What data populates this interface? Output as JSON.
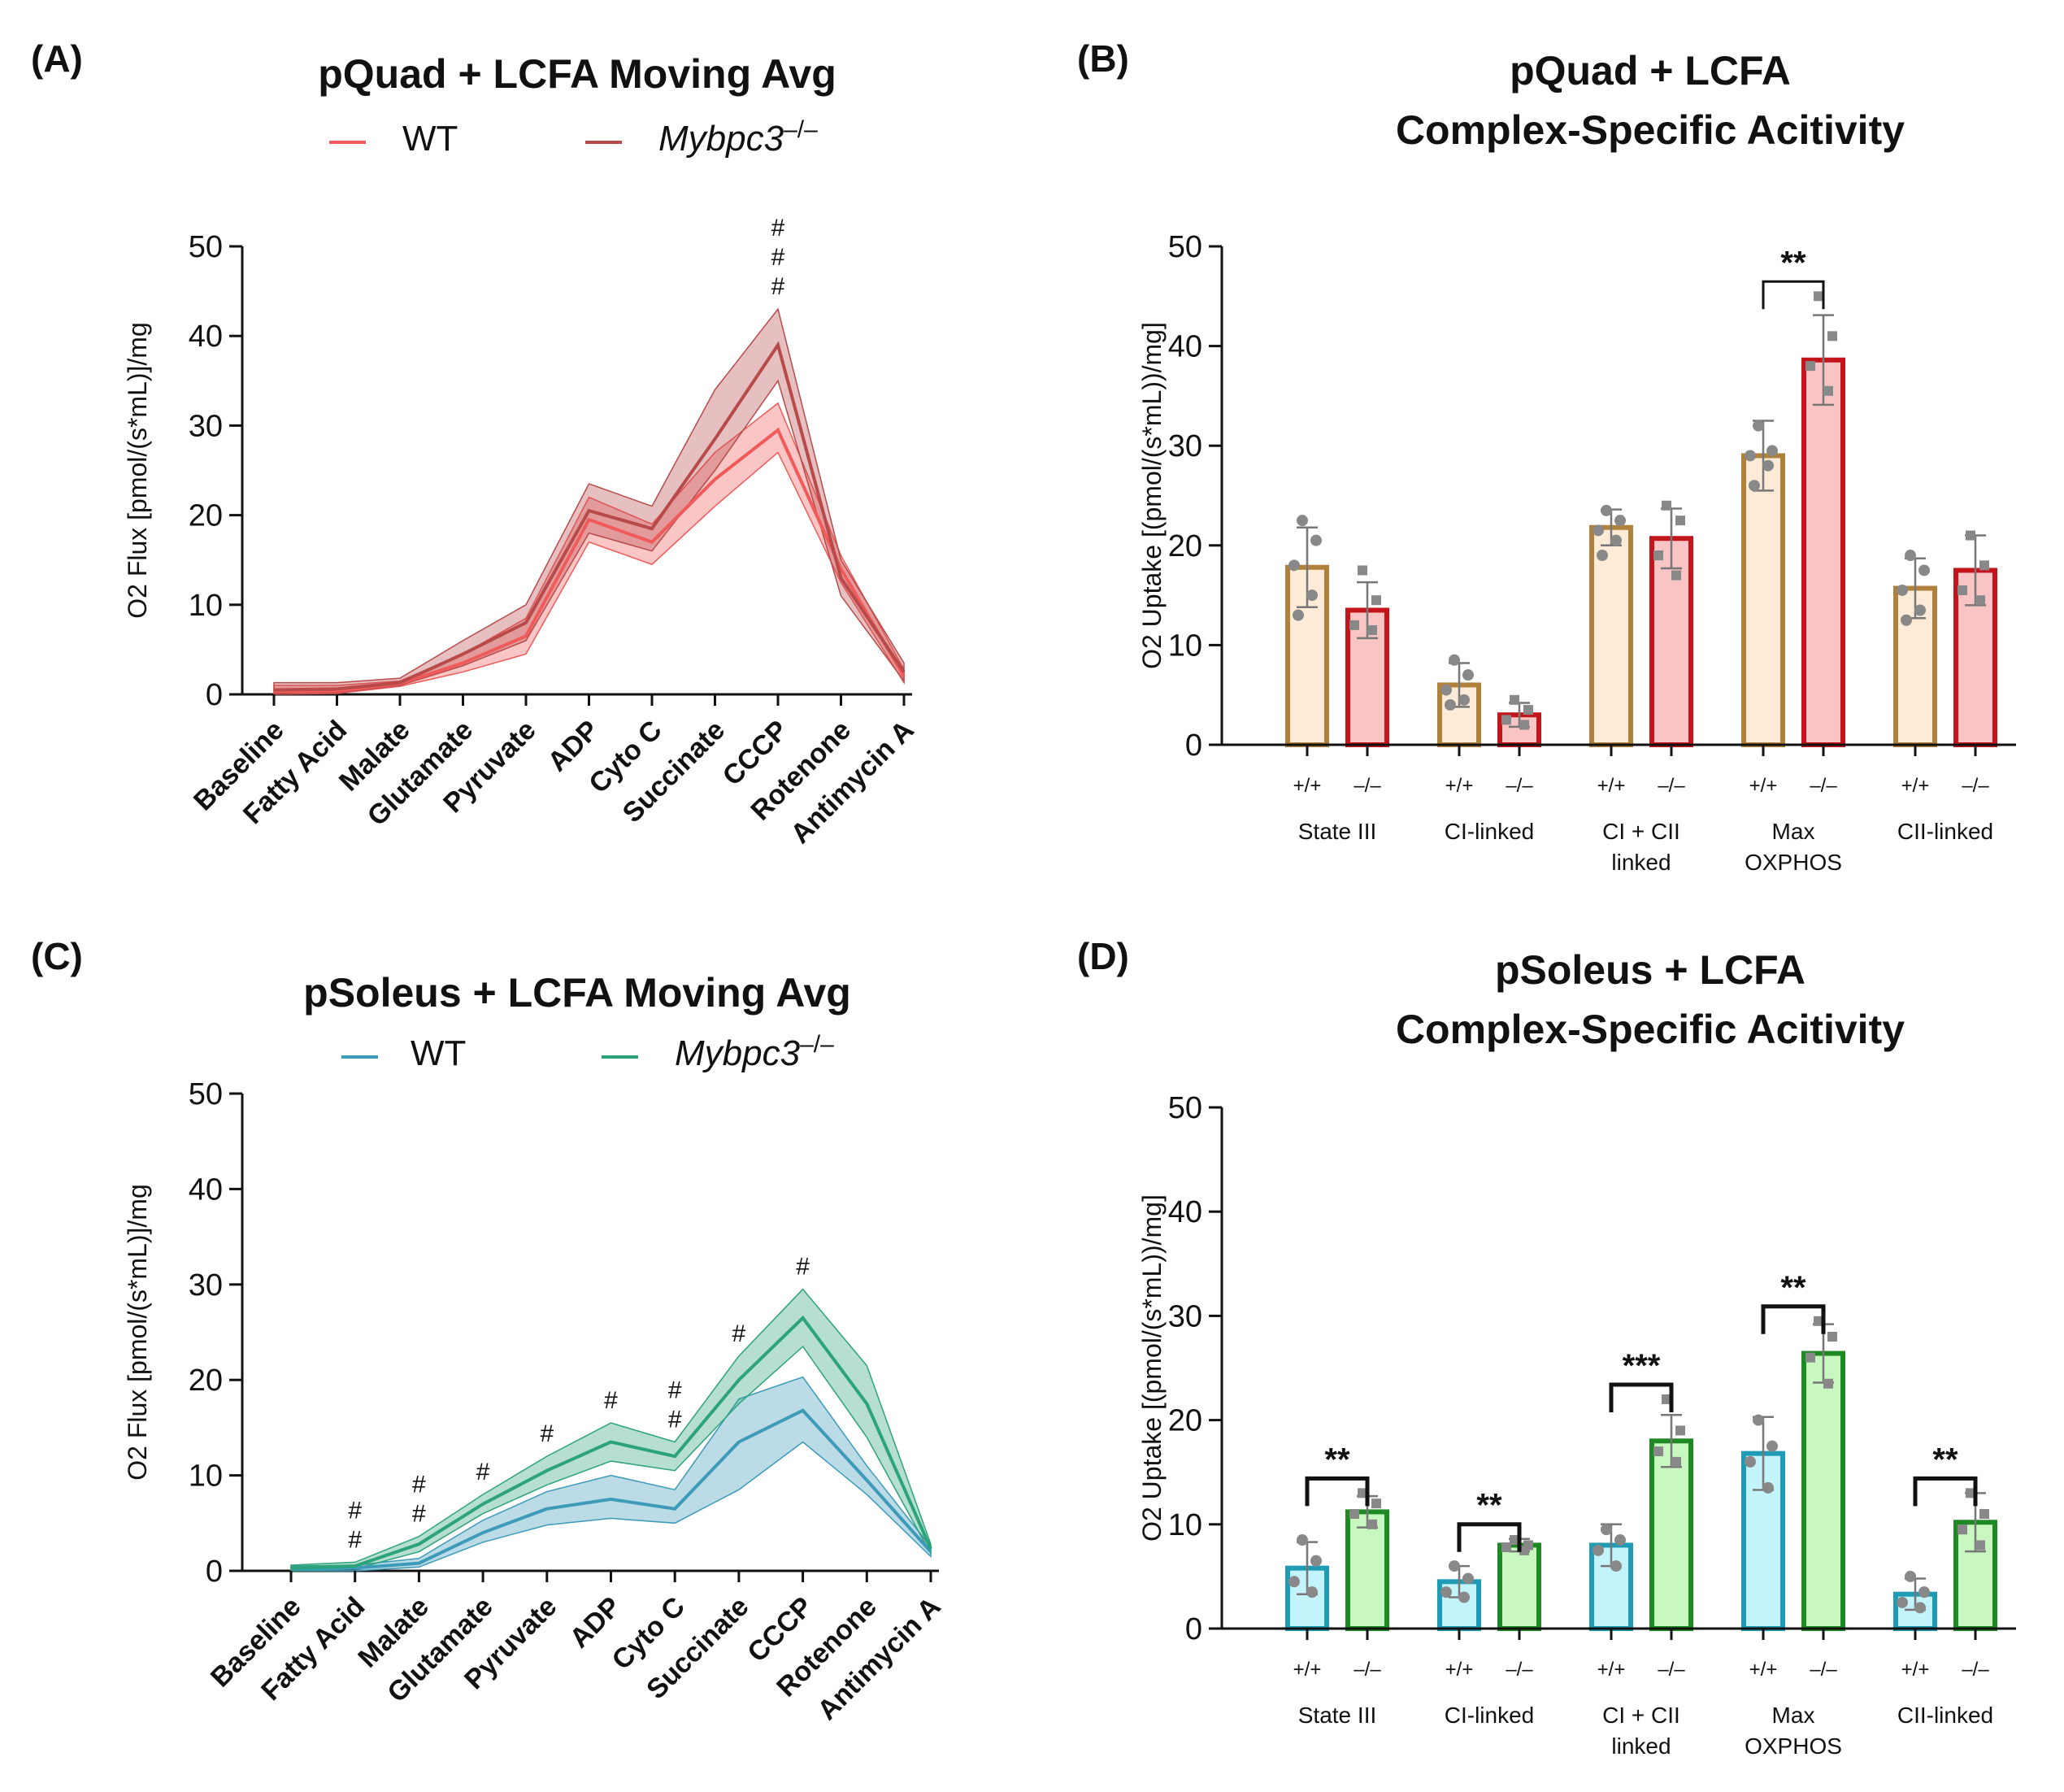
{
  "chart_data": [
    {
      "panel": "(A)",
      "type": "line",
      "title": "pQuad + LCFA Moving Avg",
      "xlabel": "",
      "ylabel": "O2 Flux [pmol/(s*mL)]/mg",
      "ylim": [
        0,
        50
      ],
      "yticks": [
        0,
        10,
        20,
        30,
        40,
        50
      ],
      "categories": [
        "Baseline",
        "Fatty Acid",
        "Malate",
        "Glutamate",
        "Pyruvate",
        "ADP",
        "Cyto C",
        "Succinate",
        "CCCP",
        "Rotenone",
        "Antimycin A"
      ],
      "legend": {
        "placement": "top"
      },
      "series": [
        {
          "name": "WT",
          "color": "#f05a5a",
          "values": [
            0.3,
            0.4,
            1.2,
            3.5,
            6.5,
            19.5,
            17.0,
            24.0,
            29.5,
            14.0,
            2.0
          ],
          "band_low": [
            0.0,
            0.1,
            0.9,
            2.5,
            4.5,
            17.0,
            14.5,
            21.0,
            27.0,
            12.5,
            1.3
          ],
          "band_high": [
            1.0,
            1.0,
            1.5,
            4.5,
            8.5,
            22.0,
            19.0,
            27.0,
            32.5,
            15.5,
            2.8
          ]
        },
        {
          "name": "Mybpc3",
          "name_sup": "–/–",
          "color": "#b84a4a",
          "values": [
            0.5,
            0.6,
            1.3,
            4.5,
            8.0,
            20.5,
            18.5,
            28.5,
            39.0,
            13.0,
            2.5
          ],
          "band_low": [
            0.0,
            0.2,
            1.0,
            3.2,
            6.0,
            18.0,
            16.0,
            25.0,
            35.0,
            11.0,
            1.5
          ],
          "band_high": [
            1.3,
            1.3,
            1.8,
            6.0,
            10.0,
            23.5,
            21.0,
            34.0,
            43.0,
            15.0,
            3.5
          ]
        }
      ],
      "annotations": [
        {
          "category": "CCCP",
          "text": "#",
          "count": 3
        }
      ]
    },
    {
      "panel": "(B)",
      "type": "bar",
      "title": [
        "pQuad + LCFA",
        "Complex-Specific Acitivity"
      ],
      "ylabel": "O2 Uptake [(pmol/(s*mL))/mg]",
      "ylim": [
        0,
        50
      ],
      "yticks": [
        0,
        10,
        20,
        30,
        40,
        50
      ],
      "groups": [
        [
          "State III"
        ],
        [
          "CI-linked"
        ],
        [
          "CI + CII",
          "linked"
        ],
        [
          "Max",
          "OXPHOS"
        ],
        [
          "CII-linked"
        ]
      ],
      "genotypes": [
        "+/+",
        "–/–"
      ],
      "series": [
        {
          "name": "+/+",
          "edge": "#b0813a",
          "fill": "#fdebd8",
          "values": [
            17.8,
            6.0,
            21.8,
            29.0,
            15.7
          ],
          "errors": [
            4.0,
            2.2,
            1.8,
            3.5,
            3.0
          ],
          "points": [
            [
              22.5,
              20.5,
              18.0,
              15.0,
              13.0
            ],
            [
              8.5,
              7.0,
              5.5,
              4.5,
              4.0
            ],
            [
              23.5,
              22.5,
              21.5,
              20.5,
              19.0
            ],
            [
              32.0,
              29.5,
              29.0,
              28.0,
              26.0
            ],
            [
              19.0,
              17.5,
              15.5,
              13.5,
              12.5
            ]
          ]
        },
        {
          "name": "–/–",
          "edge": "#c4151c",
          "fill": "#f9c4c4",
          "values": [
            13.5,
            3.0,
            20.7,
            38.6,
            17.5
          ],
          "errors": [
            2.8,
            1.2,
            3.0,
            4.5,
            3.5
          ],
          "points": [
            [
              17.5,
              14.5,
              12.0,
              11.5
            ],
            [
              4.5,
              3.5,
              2.5,
              2.0
            ],
            [
              24.0,
              22.5,
              19.0,
              17.0
            ],
            [
              45.0,
              41.0,
              38.0,
              35.5
            ],
            [
              21.0,
              18.0,
              15.5,
              14.5
            ]
          ]
        }
      ],
      "significance": [
        {
          "group": "Max OXPHOS",
          "text": "**"
        }
      ]
    },
    {
      "panel": "(C)",
      "type": "line",
      "title": "pSoleus + LCFA Moving Avg",
      "xlabel": "",
      "ylabel": "O2 Flux [pmol/(s*mL)]/mg",
      "ylim": [
        0,
        50
      ],
      "yticks": [
        0,
        10,
        20,
        30,
        40,
        50
      ],
      "categories": [
        "Baseline",
        "Fatty Acid",
        "Malate",
        "Glutamate",
        "Pyruvate",
        "ADP",
        "Cyto C",
        "Succinate",
        "CCCP",
        "Rotenone",
        "Antimycin A"
      ],
      "legend": {
        "placement": "top"
      },
      "series": [
        {
          "name": "WT",
          "color": "#3d9ab8",
          "values": [
            0.2,
            0.3,
            0.8,
            4.0,
            6.5,
            7.5,
            6.5,
            13.5,
            16.8,
            9.5,
            2.0
          ],
          "band_low": [
            0.0,
            0.0,
            0.4,
            3.0,
            4.8,
            5.5,
            5.0,
            8.5,
            13.5,
            8.0,
            1.5
          ],
          "band_high": [
            0.5,
            0.6,
            1.3,
            5.3,
            8.3,
            10.0,
            8.5,
            18.0,
            20.3,
            11.0,
            2.5
          ]
        },
        {
          "name": "Mybpc3",
          "name_sup": "–/–",
          "color": "#2da37a",
          "values": [
            0.3,
            0.5,
            2.8,
            7.0,
            10.5,
            13.5,
            12.0,
            20.0,
            26.5,
            17.5,
            2.3
          ],
          "band_low": [
            0.0,
            0.2,
            2.0,
            6.0,
            9.0,
            11.5,
            10.5,
            17.5,
            23.5,
            14.0,
            1.8
          ],
          "band_high": [
            0.6,
            0.9,
            3.6,
            8.0,
            12.0,
            15.5,
            13.5,
            22.5,
            29.5,
            21.5,
            2.8
          ]
        }
      ],
      "annotations": [
        {
          "category": "Fatty Acid",
          "text": "#",
          "count": 2
        },
        {
          "category": "Malate",
          "text": "#",
          "count": 2
        },
        {
          "category": "Glutamate",
          "text": "#",
          "count": 1
        },
        {
          "category": "Pyruvate",
          "text": "#",
          "count": 1
        },
        {
          "category": "ADP",
          "text": "#",
          "count": 1
        },
        {
          "category": "Cyto C",
          "text": "#",
          "count": 2
        },
        {
          "category": "Succinate",
          "text": "#",
          "count": 1
        },
        {
          "category": "CCCP",
          "text": "#",
          "count": 1
        }
      ]
    },
    {
      "panel": "(D)",
      "type": "bar",
      "title": [
        "pSoleus + LCFA",
        "Complex-Specific Acitivity"
      ],
      "ylabel": "O2 Uptake [(pmol/(s*mL))/mg]",
      "ylim": [
        0,
        50
      ],
      "yticks": [
        0,
        10,
        20,
        30,
        40,
        50
      ],
      "groups": [
        [
          "State III"
        ],
        [
          "CI-linked"
        ],
        [
          "CI + CII",
          "linked"
        ],
        [
          "Max",
          "OXPHOS"
        ],
        [
          "CII-linked"
        ]
      ],
      "genotypes": [
        "+/+",
        "–/–"
      ],
      "series": [
        {
          "name": "+/+",
          "edge": "#1f9bb5",
          "fill": "#c4f4fb",
          "values": [
            5.8,
            4.5,
            8.0,
            16.8,
            3.3
          ],
          "errors": [
            2.5,
            1.5,
            2.0,
            3.5,
            1.5
          ],
          "points": [
            [
              8.5,
              6.5,
              4.5,
              3.5
            ],
            [
              6.0,
              4.8,
              3.5,
              3.0
            ],
            [
              9.5,
              8.5,
              7.5,
              6.0
            ],
            [
              20.0,
              17.5,
              16.0,
              13.5
            ],
            [
              5.0,
              3.5,
              2.5,
              2.0
            ]
          ]
        },
        {
          "name": "–/–",
          "edge": "#1f8a24",
          "fill": "#c8f7c0",
          "values": [
            11.2,
            8.0,
            18.0,
            26.4,
            10.2
          ],
          "errors": [
            1.5,
            0.6,
            2.5,
            2.8,
            2.8
          ],
          "points": [
            [
              13.0,
              12.0,
              11.0,
              10.0
            ],
            [
              8.5,
              8.0,
              7.8,
              7.5
            ],
            [
              22.0,
              19.0,
              17.0,
              16.0
            ],
            [
              29.5,
              28.0,
              26.0,
              23.5
            ],
            [
              13.0,
              11.0,
              9.5,
              8.0
            ]
          ]
        }
      ],
      "significance": [
        {
          "group": "State III",
          "text": "**"
        },
        {
          "group": "CI-linked",
          "text": "**"
        },
        {
          "group": "CI + CII linked",
          "text": "***"
        },
        {
          "group": "Max OXPHOS",
          "text": "**"
        },
        {
          "group": "CII-linked",
          "text": "**"
        }
      ]
    }
  ]
}
